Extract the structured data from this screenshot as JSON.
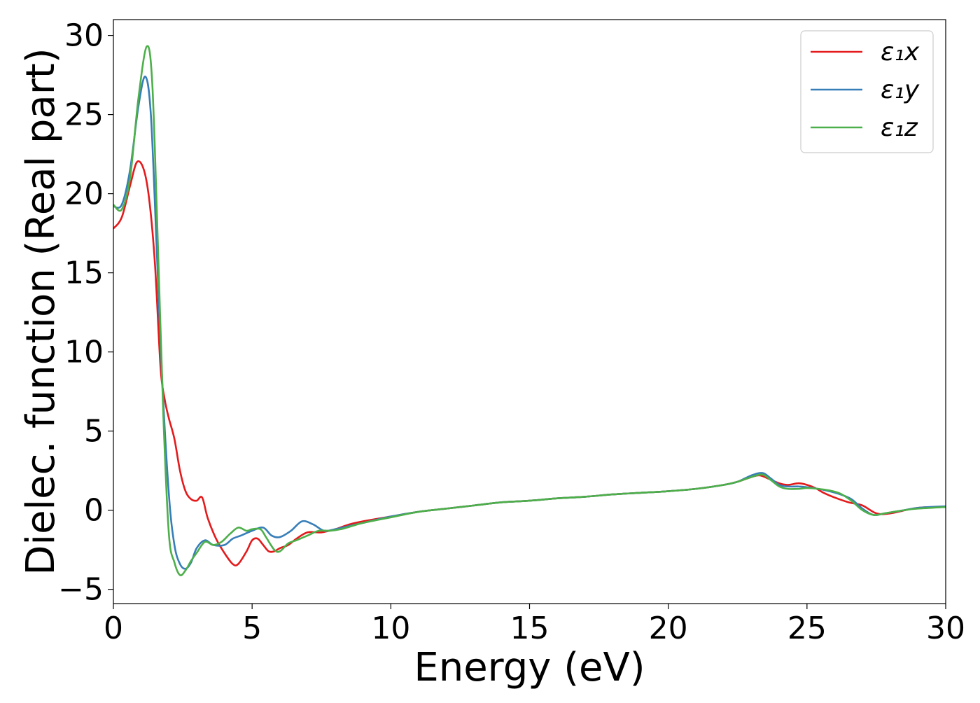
{
  "chart_data": {
    "type": "line",
    "title": "",
    "xlabel": "Energy (eV)",
    "ylabel": "Dielec. function (Real part)",
    "xlim": [
      0,
      30
    ],
    "ylim": [
      -5.9,
      31
    ],
    "xticks": [
      0,
      5,
      10,
      15,
      20,
      25,
      30
    ],
    "yticks": [
      -5,
      0,
      5,
      10,
      15,
      20,
      25,
      30
    ],
    "xtick_labels": [
      "0",
      "5",
      "10",
      "15",
      "20",
      "25",
      "30"
    ],
    "ytick_labels": [
      "−5",
      "0",
      "5",
      "10",
      "15",
      "20",
      "25",
      "30"
    ],
    "grid": false,
    "legend_position": "top-right",
    "series": [
      {
        "name": "ε₁x",
        "color": "#e41a1c",
        "x": [
          0,
          0.3,
          0.6,
          0.85,
          1.1,
          1.3,
          1.5,
          1.7,
          1.85,
          2.0,
          2.2,
          2.4,
          2.6,
          2.8,
          3.0,
          3.2,
          3.4,
          3.7,
          4.0,
          4.3,
          4.5,
          4.8,
          5.0,
          5.2,
          5.4,
          5.6,
          5.8,
          6.0,
          6.3,
          6.6,
          7.0,
          7.5,
          8.0,
          8.5,
          9.0,
          10,
          11,
          12,
          13,
          14,
          15,
          16,
          17,
          18,
          19,
          20,
          21,
          22,
          22.5,
          23,
          23.3,
          23.6,
          24.0,
          24.3,
          24.7,
          25.0,
          25.3,
          25.6,
          26.0,
          26.5,
          27.0,
          27.5,
          28,
          29,
          30
        ],
        "y": [
          17.8,
          18.5,
          20.5,
          22.0,
          21.5,
          19.5,
          15.5,
          9.0,
          7.0,
          5.8,
          4.5,
          2.5,
          1.2,
          0.7,
          0.6,
          0.8,
          -0.5,
          -1.8,
          -2.7,
          -3.4,
          -3.4,
          -2.6,
          -1.9,
          -1.8,
          -2.2,
          -2.6,
          -2.6,
          -2.4,
          -2.2,
          -1.8,
          -1.4,
          -1.4,
          -1.2,
          -0.9,
          -0.7,
          -0.4,
          -0.1,
          0.1,
          0.3,
          0.5,
          0.6,
          0.75,
          0.85,
          1.0,
          1.1,
          1.2,
          1.35,
          1.6,
          1.8,
          2.1,
          2.2,
          2.0,
          1.7,
          1.6,
          1.7,
          1.6,
          1.4,
          1.1,
          0.8,
          0.5,
          0.3,
          -0.2,
          -0.2,
          0.15,
          0.2
        ]
      },
      {
        "name": "ε₁y",
        "color": "#377eb8",
        "x": [
          0,
          0.3,
          0.6,
          0.9,
          1.15,
          1.35,
          1.55,
          1.75,
          2.0,
          2.2,
          2.4,
          2.6,
          2.8,
          3.0,
          3.3,
          3.6,
          4.0,
          4.3,
          4.6,
          5.0,
          5.4,
          5.7,
          6.0,
          6.4,
          6.8,
          7.2,
          7.6,
          8.0,
          8.5,
          9,
          10,
          11,
          12,
          13,
          14,
          15,
          16,
          17,
          18,
          19,
          20,
          21,
          22,
          22.5,
          23,
          23.4,
          23.7,
          24.0,
          24.3,
          24.7,
          25.0,
          25.4,
          25.8,
          26.2,
          26.6,
          27.0,
          27.4,
          27.8,
          28.5,
          29,
          30
        ],
        "y": [
          19.2,
          19.3,
          21.5,
          25.5,
          27.4,
          25.0,
          17.0,
          8.5,
          1.0,
          -2.2,
          -3.4,
          -3.7,
          -3.3,
          -2.4,
          -1.9,
          -2.2,
          -2.2,
          -1.8,
          -1.6,
          -1.3,
          -1.1,
          -1.6,
          -1.7,
          -1.3,
          -0.7,
          -0.9,
          -1.3,
          -1.2,
          -1.0,
          -0.8,
          -0.4,
          -0.1,
          0.1,
          0.3,
          0.5,
          0.6,
          0.75,
          0.85,
          1.0,
          1.1,
          1.2,
          1.35,
          1.6,
          1.8,
          2.2,
          2.35,
          2.0,
          1.6,
          1.5,
          1.5,
          1.45,
          1.35,
          1.2,
          1.0,
          0.7,
          0.1,
          -0.3,
          -0.2,
          0.0,
          0.15,
          0.25
        ]
      },
      {
        "name": "ε₁z",
        "color": "#4daf4a",
        "x": [
          0,
          0.3,
          0.6,
          0.9,
          1.2,
          1.4,
          1.6,
          1.8,
          2.0,
          2.2,
          2.4,
          2.6,
          2.8,
          3.0,
          3.3,
          3.6,
          3.9,
          4.2,
          4.5,
          4.8,
          5.0,
          5.3,
          5.5,
          5.8,
          6.0,
          6.3,
          6.6,
          7.0,
          7.4,
          7.8,
          8.2,
          8.6,
          9,
          10,
          11,
          12,
          13,
          14,
          15,
          16,
          17,
          18,
          19,
          20,
          21,
          22,
          22.5,
          23,
          23.4,
          23.7,
          24.0,
          24.3,
          24.7,
          25.0,
          25.4,
          25.8,
          26.2,
          26.6,
          27.0,
          27.4,
          27.8,
          28.5,
          29,
          30
        ],
        "y": [
          19.3,
          19.0,
          21.0,
          26.0,
          29.3,
          27.0,
          17.0,
          6.0,
          -1.5,
          -3.3,
          -4.1,
          -3.8,
          -3.2,
          -2.7,
          -2.0,
          -2.2,
          -2.0,
          -1.5,
          -1.1,
          -1.3,
          -1.2,
          -1.2,
          -1.7,
          -2.5,
          -2.6,
          -2.1,
          -1.9,
          -1.6,
          -1.3,
          -1.3,
          -1.2,
          -1.0,
          -0.8,
          -0.45,
          -0.1,
          0.1,
          0.3,
          0.5,
          0.6,
          0.75,
          0.85,
          1.0,
          1.1,
          1.2,
          1.35,
          1.6,
          1.8,
          2.1,
          2.25,
          1.9,
          1.5,
          1.35,
          1.35,
          1.4,
          1.35,
          1.25,
          1.05,
          0.6,
          0.0,
          -0.3,
          -0.2,
          0.0,
          0.1,
          0.2
        ]
      }
    ]
  }
}
